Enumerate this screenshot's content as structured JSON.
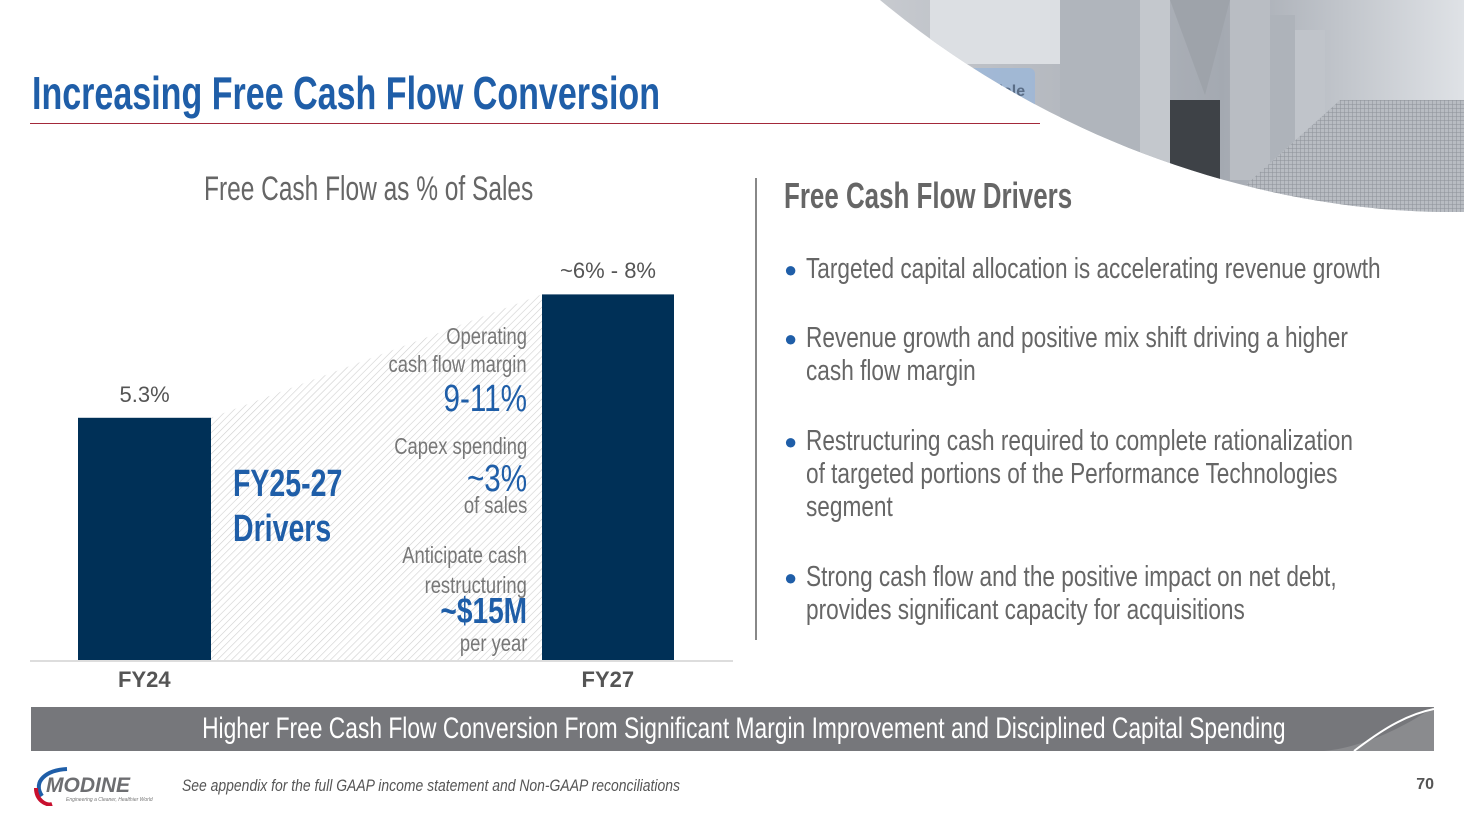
{
  "title": "Increasing Free Cash Flow Conversion",
  "chart_data": {
    "type": "bar",
    "title": "Free Cash Flow as % of Sales",
    "categories": [
      "FY24",
      "FY27"
    ],
    "values": [
      5.3,
      8
    ],
    "data_labels": [
      "5.3%",
      "~6% - 8%"
    ],
    "ylim": [
      0,
      10
    ],
    "xlabel": "",
    "ylabel": "",
    "bar_color": "#003057",
    "grid": false
  },
  "drivers": {
    "heading_line1": "FY25-27",
    "heading_line2": "Drivers",
    "op_label1": "Operating",
    "op_label2": "cash flow margin",
    "op_value": "9-11%",
    "capex_label": "Capex spending",
    "capex_value": "~3%",
    "capex_sub": "of sales",
    "restr_label1": "Anticipate cash",
    "restr_label2": "restructuring",
    "restr_value": "~$15M",
    "restr_sub": "per year"
  },
  "right": {
    "heading": "Free Cash Flow Drivers",
    "bullets": [
      {
        "line1": "Targeted capital allocation is accelerating revenue growth"
      },
      {
        "line1": "Revenue growth and positive mix shift driving a higher",
        "line2": "cash flow margin"
      },
      {
        "line1": "Restructuring cash required to complete rationalization",
        "line2": "of targeted portions of the Performance Technologies",
        "line3": "segment"
      },
      {
        "line1": "Strong cash flow and the positive impact on net debt,",
        "line2": "provides significant capacity for acquisitions"
      }
    ]
  },
  "photo_text": "Airedale",
  "banner": "Higher Free Cash Flow Conversion From Significant Margin Improvement and Disciplined Capital Spending",
  "footer": {
    "logo_text": "MODINE",
    "tagline": "Engineering a Cleaner, Healthier World",
    "note": "See appendix for the full GAAP income statement and Non-GAAP reconciliations",
    "page": "70"
  },
  "colors": {
    "blue": "#1f5ea8",
    "navy": "#003057",
    "red": "#a3293a",
    "gray": "#76777b"
  }
}
